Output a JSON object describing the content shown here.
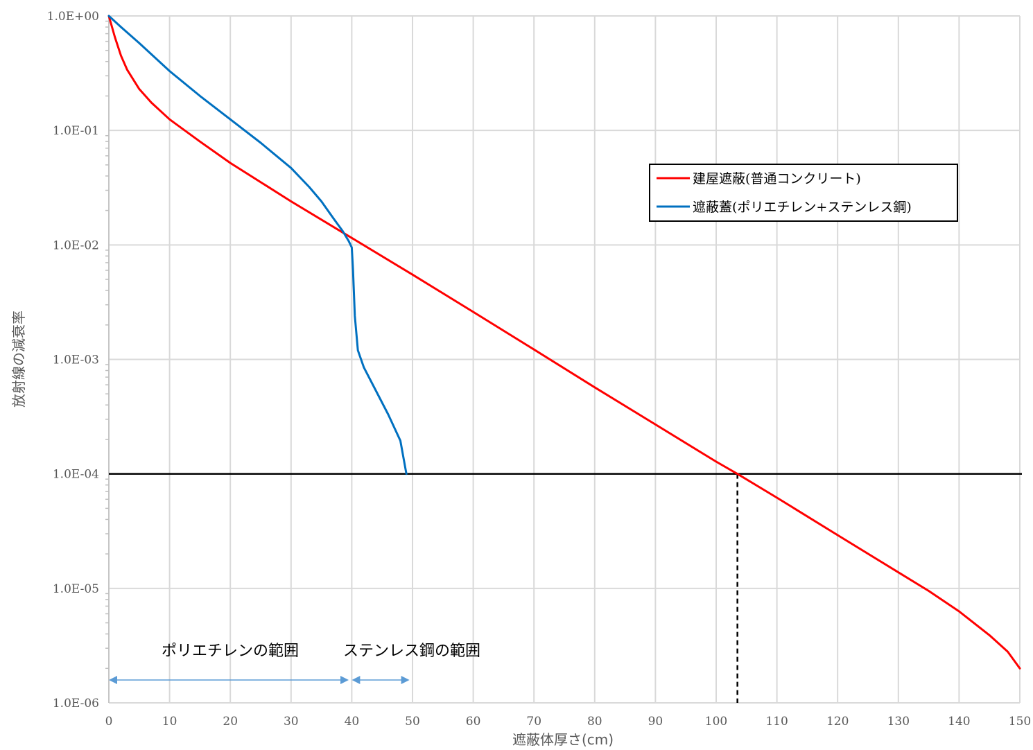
{
  "chart_data": {
    "type": "line",
    "xlabel": "遮蔽体厚さ(cm)",
    "ylabel": "放射線の減衰率",
    "xlim": [
      0,
      150
    ],
    "ylim": [
      1e-06,
      1
    ],
    "yscale": "log",
    "grid": true,
    "x_ticks": [
      0,
      10,
      20,
      30,
      40,
      50,
      60,
      70,
      80,
      90,
      100,
      110,
      120,
      130,
      140,
      150
    ],
    "x_tick_labels": [
      "0",
      "10",
      "20",
      "30",
      "40",
      "50",
      "60",
      "70",
      "80",
      "90",
      "100",
      "110",
      "120",
      "130",
      "140",
      "150"
    ],
    "y_ticks": [
      1,
      0.1,
      0.01,
      0.001,
      0.0001,
      1e-05,
      1e-06
    ],
    "y_tick_labels": [
      "1.0E+00",
      "1.0E-01",
      "1.0E-02",
      "1.0E-03",
      "1.0E-04",
      "1.0E-05",
      "1.0E-06"
    ],
    "legend_position": "upper-right",
    "series": [
      {
        "name": "建屋遮蔽(普通コンクリート)",
        "color": "#ff0000",
        "x": [
          0,
          1,
          2,
          3,
          5,
          7,
          10,
          15,
          20,
          30,
          40,
          50,
          60,
          70,
          80,
          90,
          100,
          103.5,
          110,
          120,
          130,
          135,
          140,
          145,
          148,
          150
        ],
        "y": [
          1,
          0.65,
          0.45,
          0.34,
          0.23,
          0.175,
          0.125,
          0.08,
          0.052,
          0.024,
          0.0115,
          0.0055,
          0.0026,
          0.00122,
          0.00057,
          0.00027,
          0.000128,
          0.0001,
          6.2e-05,
          2.92e-05,
          1.38e-05,
          9.5e-06,
          6.3e-06,
          3.9e-06,
          2.8e-06,
          2e-06
        ]
      },
      {
        "name": "遮蔽蓋(ポリエチレン+ステンレス鋼)",
        "color": "#0070c0",
        "x": [
          0,
          2,
          5,
          10,
          15,
          20,
          25,
          30,
          33,
          35,
          37,
          38.5,
          39.5,
          40,
          40.2,
          40.5,
          41,
          42,
          44,
          46,
          48,
          49
        ],
        "y": [
          1,
          0.8,
          0.58,
          0.33,
          0.2,
          0.125,
          0.078,
          0.047,
          0.032,
          0.024,
          0.017,
          0.0132,
          0.0108,
          0.0095,
          0.006,
          0.0024,
          0.0012,
          0.00085,
          0.00053,
          0.00033,
          0.000195,
          0.0001
        ]
      }
    ],
    "reference_lines": [
      {
        "kind": "horizontal",
        "y": 0.0001,
        "style": "solid",
        "color": "#000000"
      },
      {
        "kind": "vertical",
        "x": 103.5,
        "y_from": 1e-06,
        "y_to": 0.0001,
        "style": "dashed",
        "color": "#000000"
      }
    ],
    "annotations": [
      {
        "text": "ポリエチレンの範囲",
        "x_from": 0,
        "x_to": 39.5,
        "arrow_color": "#5b9bd5"
      },
      {
        "text": "ステンレス鋼の範囲",
        "x_from": 40,
        "x_to": 49.5,
        "arrow_color": "#5b9bd5"
      }
    ]
  }
}
